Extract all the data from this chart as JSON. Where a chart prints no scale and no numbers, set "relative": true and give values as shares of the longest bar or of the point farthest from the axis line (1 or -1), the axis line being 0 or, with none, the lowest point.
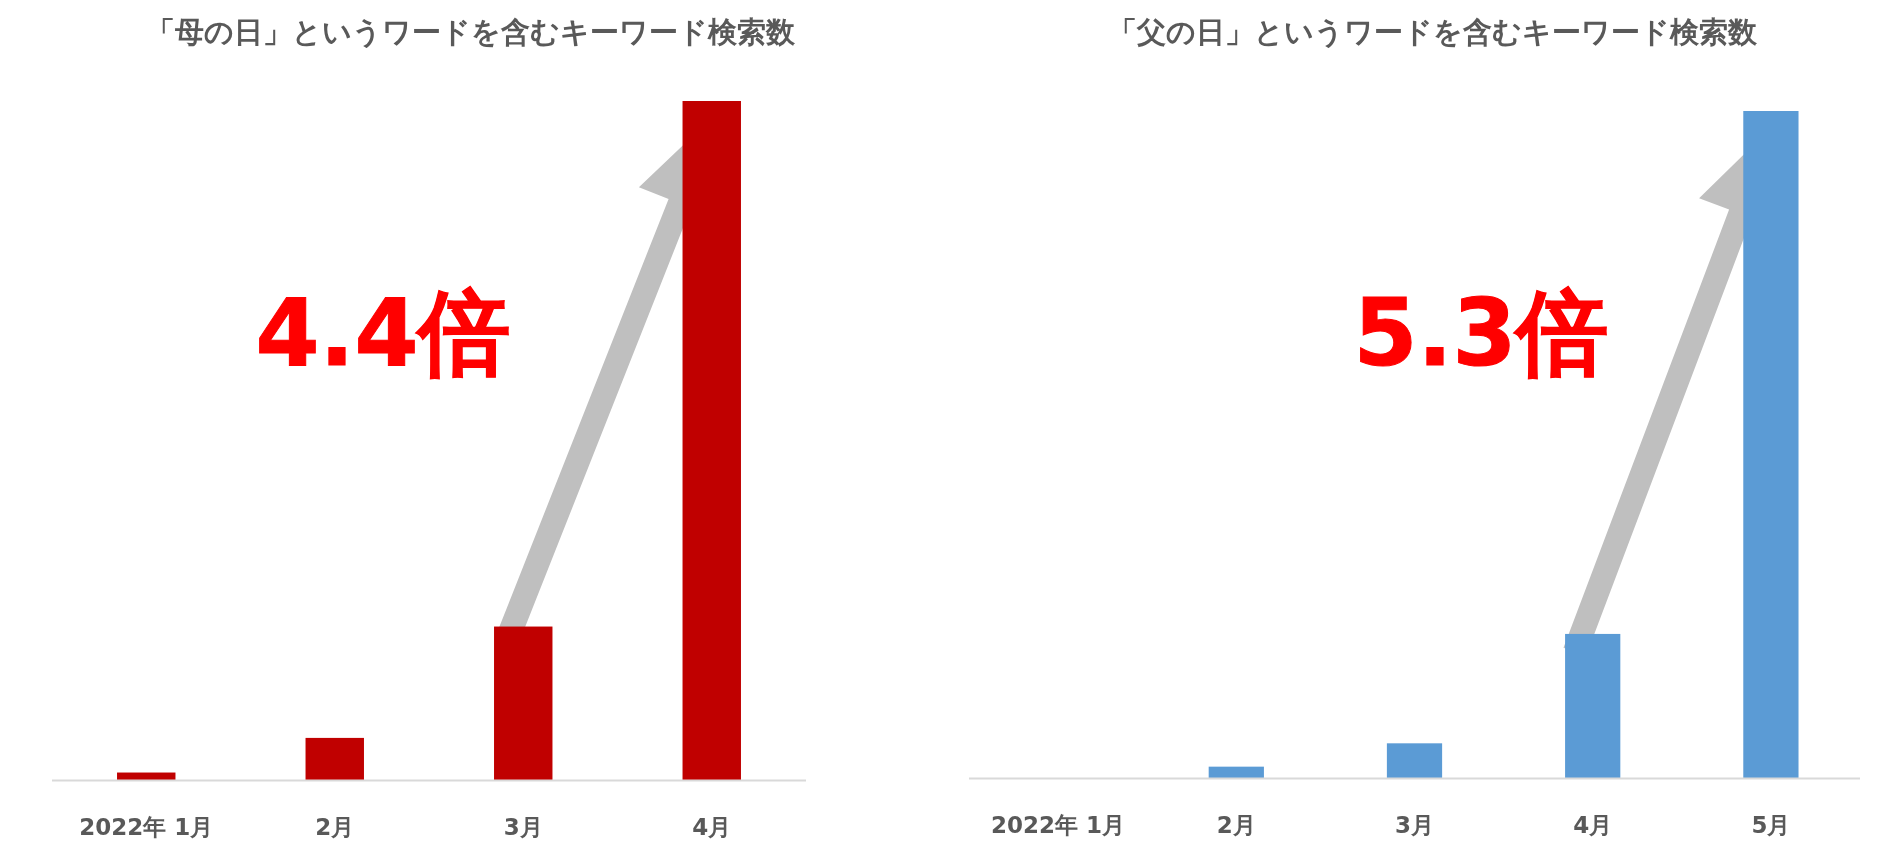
{
  "chart_data": [
    {
      "type": "bar",
      "title": "「母の日」というワードを含むキーワード検索数",
      "categories": [
        "2022年 1月",
        "2月",
        "3月",
        "4月"
      ],
      "relative": true,
      "tick_labels": "x",
      "series": [
        {
          "color": "#c00000",
          "values": [
            0.011,
            0.062,
            0.226,
            1
          ]
        }
      ],
      "annotations": [
        "4.4倍"
      ]
    },
    {
      "type": "bar",
      "title": "「父の日」というワードを含むキーワード検索数",
      "categories": [
        "2022年 1月",
        "2月",
        "3月",
        "4月",
        "5月"
      ],
      "relative": true,
      "tick_labels": "x",
      "series": [
        {
          "color": "#5b9bd5",
          "values": [
            0,
            0.017,
            0.052,
            0.216,
            1
          ]
        }
      ],
      "annotations": [
        "5.3倍"
      ]
    }
  ]
}
